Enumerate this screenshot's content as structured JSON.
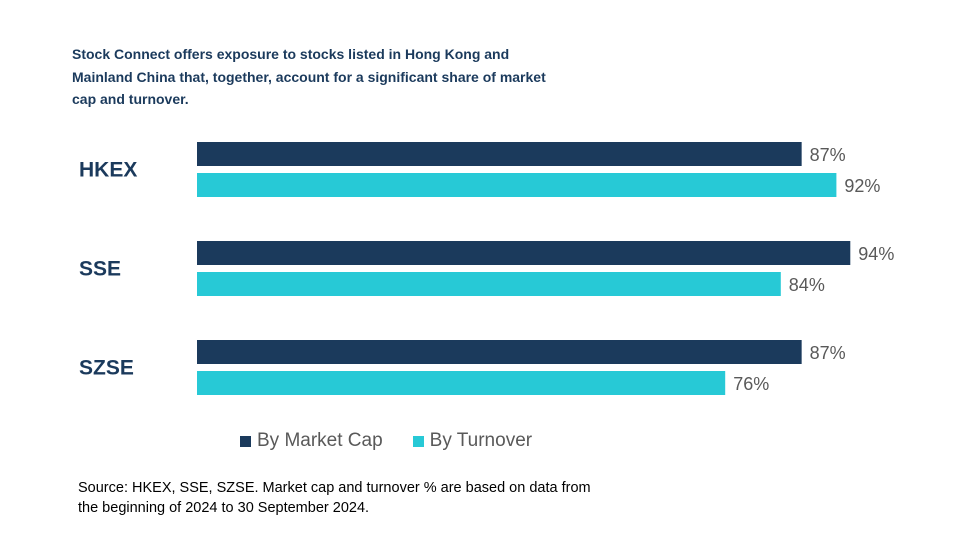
{
  "title_lines": [
    "Stock Connect offers exposure to stocks listed in Hong Kong and",
    "Mainland China that, together, account for a significant share of market",
    "cap and turnover."
  ],
  "source_lines": [
    "Source: HKEX, SSE, SZSE. Market cap and turnover % are based on data from",
    "the beginning of 2024 to 30 September 2024."
  ],
  "colors": {
    "market_cap": "#1b3a5c",
    "turnover": "#27c9d6",
    "category_label": "#1b3a5c",
    "value_label": "#595959"
  },
  "chart_data": {
    "type": "bar",
    "orientation": "horizontal",
    "categories": [
      "HKEX",
      "SSE",
      "SZSE"
    ],
    "series": [
      {
        "name": "By Market Cap",
        "values": [
          87,
          94,
          87
        ],
        "color": "#1b3a5c"
      },
      {
        "name": "By Turnover",
        "values": [
          92,
          84,
          76
        ],
        "color": "#27c9d6"
      }
    ],
    "value_labels": [
      [
        "87%",
        "92%"
      ],
      [
        "94%",
        "84%"
      ],
      [
        "87%",
        "76%"
      ]
    ],
    "xlim": [
      0,
      100
    ],
    "grid": false,
    "legend_position": "bottom"
  }
}
